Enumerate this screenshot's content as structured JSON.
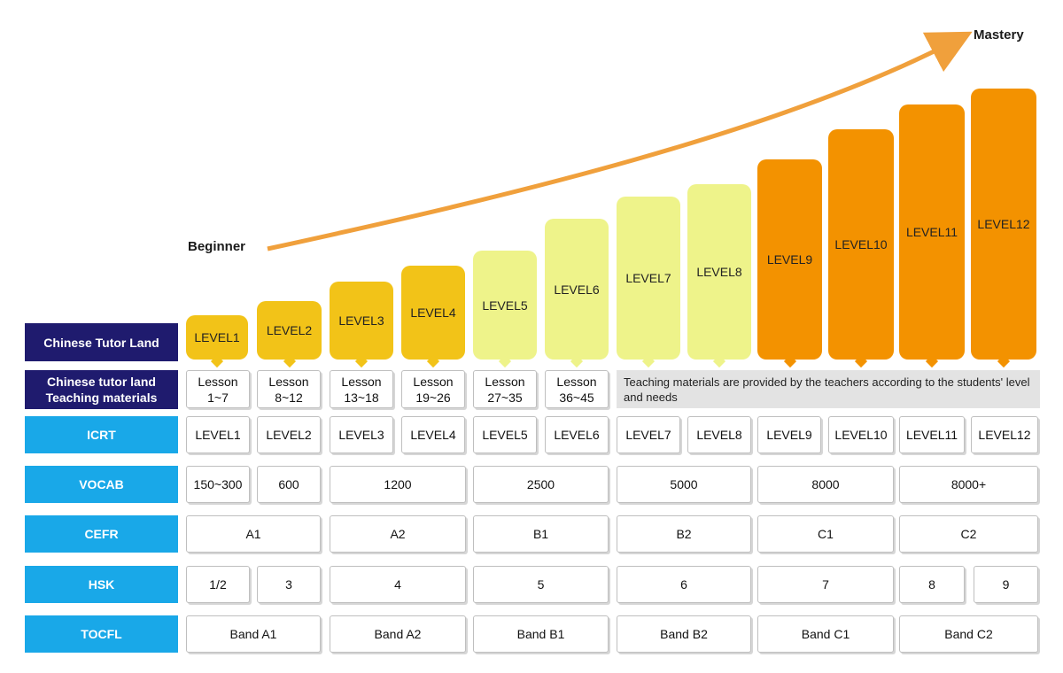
{
  "header": {
    "beginner": "Beginner",
    "mastery": "Mastery"
  },
  "levels": [
    "LEVEL1",
    "LEVEL2",
    "LEVEL3",
    "LEVEL4",
    "LEVEL5",
    "LEVEL6",
    "LEVEL7",
    "LEVEL8",
    "LEVEL9",
    "LEVEL10",
    "LEVEL11",
    "LEVEL12"
  ],
  "level_colors": {
    "gold": "#f2c318",
    "pale": "#eef38a",
    "orange": "#f39200",
    "arrow": "#f0a03c",
    "navy": "#1f1b6e",
    "cyan": "#19a8e8"
  },
  "rows": {
    "ctl": "Chinese Tutor Land",
    "materials_line1": "Chinese tutor land",
    "materials_line2": "Teaching materials",
    "icrt": "ICRT",
    "vocab": "VOCAB",
    "cefr": "CEFR",
    "hsk": "HSK",
    "tocfl": "TOCFL"
  },
  "lessons": [
    {
      "a": "Lesson",
      "b": "1~7"
    },
    {
      "a": "Lesson",
      "b": "8~12"
    },
    {
      "a": "Lesson",
      "b": "13~18"
    },
    {
      "a": "Lesson",
      "b": "19~26"
    },
    {
      "a": "Lesson",
      "b": "27~35"
    },
    {
      "a": "Lesson",
      "b": "36~45"
    }
  ],
  "materials_note": "Teaching materials are provided by the teachers according to the students' level and needs",
  "icrt": [
    "LEVEL1",
    "LEVEL2",
    "LEVEL3",
    "LEVEL4",
    "LEVEL5",
    "LEVEL6",
    "LEVEL7",
    "LEVEL8",
    "LEVEL9",
    "LEVEL10",
    "LEVEL11",
    "LEVEL12"
  ],
  "vocab": [
    "150~300",
    "600",
    "1200",
    "2500",
    "5000",
    "8000",
    "8000+"
  ],
  "cefr": [
    "A1",
    "A2",
    "B1",
    "B2",
    "C1",
    "C2"
  ],
  "hsk": [
    "1/2",
    "3",
    "4",
    "5",
    "6",
    "7",
    "8",
    "9"
  ],
  "tocfl": [
    "Band A1",
    "Band A2",
    "Band B1",
    "Band B2",
    "Band C1",
    "Band C2"
  ]
}
